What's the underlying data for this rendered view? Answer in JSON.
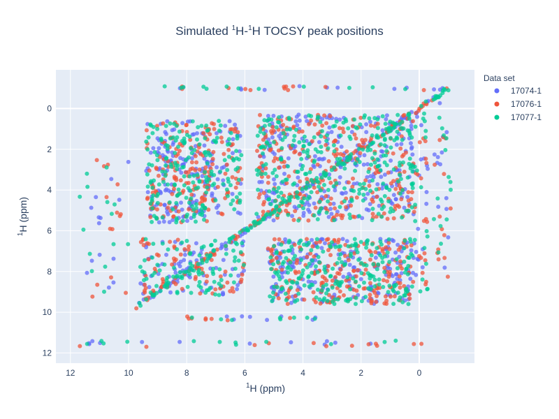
{
  "chart_data": {
    "type": "scatter",
    "title_parts": [
      "Simulated ",
      "1",
      "H-",
      "1",
      "H TOCSY peak positions"
    ],
    "xlabel_parts": [
      "1",
      "H (ppm)"
    ],
    "ylabel_parts": [
      "1",
      "H (ppm)"
    ],
    "xlim": [
      12.5,
      -1.9
    ],
    "ylim": [
      12.5,
      -1.9
    ],
    "x_reversed": true,
    "y_reversed": true,
    "x_ticks": [
      12,
      10,
      8,
      6,
      4,
      2,
      0
    ],
    "y_ticks": [
      0,
      2,
      4,
      6,
      8,
      10,
      12
    ],
    "grid": true,
    "legend": {
      "title": "Data set",
      "placement": "top-right"
    },
    "series": [
      {
        "name": "17074-1",
        "color": "#636efa",
        "regions": [
          {
            "x": [
              7.2,
              9.4
            ],
            "y": [
              0.6,
              5.6
            ],
            "n": 130
          },
          {
            "x": [
              6.1,
              7.4
            ],
            "y": [
              0.6,
              5.2
            ],
            "n": 45
          },
          {
            "x": [
              0.2,
              5.6
            ],
            "y": [
              0.3,
              5.5
            ],
            "n": 260
          },
          {
            "x": [
              6.0,
              9.6
            ],
            "y": [
              6.4,
              9.2
            ],
            "n": 70
          },
          {
            "x": [
              0.2,
              5.2
            ],
            "y": [
              6.4,
              9.6
            ],
            "n": 200
          },
          {
            "x": [
              -0.3,
              0.2
            ],
            "y": [
              0.2,
              9.0
            ],
            "n": 20
          },
          {
            "x": [
              10.0,
              11.8
            ],
            "y": [
              2.5,
              9.5
            ],
            "n": 14
          },
          {
            "x": [
              -1.1,
              -0.5
            ],
            "y": [
              -1.0,
              8.6
            ],
            "n": 14
          }
        ],
        "diagonal": {
          "from": -1.0,
          "to": 9.8,
          "n": 80
        },
        "edges": [
          {
            "y": -1.0,
            "x": [
              -1.1,
              8.8
            ],
            "n": 12
          },
          {
            "y": 11.5,
            "x": [
              -0.1,
              11.7
            ],
            "n": 12
          },
          {
            "y": 10.3,
            "x": [
              3.0,
              8.0
            ],
            "n": 8
          }
        ]
      },
      {
        "name": "17076-1",
        "color": "#ef553b",
        "regions": [
          {
            "x": [
              7.2,
              9.4
            ],
            "y": [
              0.6,
              5.6
            ],
            "n": 130
          },
          {
            "x": [
              6.1,
              7.4
            ],
            "y": [
              0.6,
              5.2
            ],
            "n": 45
          },
          {
            "x": [
              0.2,
              5.6
            ],
            "y": [
              0.3,
              5.5
            ],
            "n": 260
          },
          {
            "x": [
              6.0,
              9.6
            ],
            "y": [
              6.4,
              9.2
            ],
            "n": 70
          },
          {
            "x": [
              0.2,
              5.2
            ],
            "y": [
              6.4,
              9.6
            ],
            "n": 200
          },
          {
            "x": [
              -0.3,
              0.2
            ],
            "y": [
              0.2,
              9.0
            ],
            "n": 20
          },
          {
            "x": [
              10.0,
              11.8
            ],
            "y": [
              2.5,
              9.5
            ],
            "n": 14
          },
          {
            "x": [
              -1.1,
              -0.5
            ],
            "y": [
              -1.0,
              8.6
            ],
            "n": 14
          }
        ],
        "diagonal": {
          "from": -1.0,
          "to": 9.8,
          "n": 80
        },
        "edges": [
          {
            "y": -1.0,
            "x": [
              -1.1,
              8.8
            ],
            "n": 12
          },
          {
            "y": 11.6,
            "x": [
              -0.1,
              11.7
            ],
            "n": 12
          },
          {
            "y": 10.3,
            "x": [
              3.0,
              8.0
            ],
            "n": 8
          }
        ]
      },
      {
        "name": "17077-1",
        "color": "#00cc96",
        "regions": [
          {
            "x": [
              7.2,
              9.4
            ],
            "y": [
              0.6,
              5.6
            ],
            "n": 140
          },
          {
            "x": [
              6.1,
              7.4
            ],
            "y": [
              0.6,
              5.2
            ],
            "n": 50
          },
          {
            "x": [
              0.2,
              5.6
            ],
            "y": [
              0.3,
              5.5
            ],
            "n": 290
          },
          {
            "x": [
              6.0,
              9.6
            ],
            "y": [
              6.4,
              9.2
            ],
            "n": 80
          },
          {
            "x": [
              0.2,
              5.2
            ],
            "y": [
              6.4,
              9.6
            ],
            "n": 220
          },
          {
            "x": [
              -0.3,
              0.2
            ],
            "y": [
              0.2,
              9.0
            ],
            "n": 20
          },
          {
            "x": [
              10.0,
              11.8
            ],
            "y": [
              2.5,
              9.5
            ],
            "n": 14
          },
          {
            "x": [
              -1.1,
              -0.5
            ],
            "y": [
              -1.0,
              8.6
            ],
            "n": 14
          }
        ],
        "diagonal": {
          "from": -1.0,
          "to": 9.8,
          "n": 120
        },
        "edges": [
          {
            "y": -1.0,
            "x": [
              -1.1,
              8.8
            ],
            "n": 12
          },
          {
            "y": 11.5,
            "x": [
              -0.1,
              11.7
            ],
            "n": 12
          },
          {
            "y": 10.3,
            "x": [
              3.0,
              8.0
            ],
            "n": 8
          }
        ]
      }
    ]
  }
}
